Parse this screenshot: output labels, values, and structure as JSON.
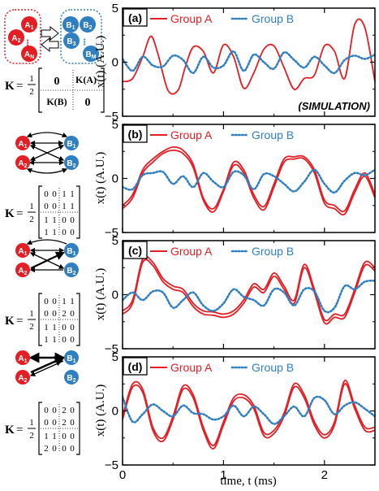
{
  "colors": {
    "group_a": "#e31e24",
    "group_b": "#2f7fc1",
    "axis": "#000000"
  },
  "axes": {
    "xlabel": "time, t (ms)",
    "ylabel": "x(t) (A.U.)",
    "x_ticks": [
      "0",
      "1",
      "2"
    ],
    "y_ticks": [
      "5",
      "0",
      "−5"
    ]
  },
  "schematic": {
    "a_nodes": [
      "A1",
      "A2",
      "AN"
    ],
    "b_nodes": [
      "B1",
      "B2",
      "BM"
    ],
    "matrix_general": {
      "lhs": "K",
      "frac_num": "1",
      "frac_den": "2",
      "rows": [
        [
          "0",
          "K(A)"
        ],
        [
          "K(B)",
          "0"
        ]
      ]
    }
  },
  "matrices": [
    {
      "panel": "b",
      "rows": [
        [
          "0",
          "0",
          "1",
          "1"
        ],
        [
          "0",
          "0",
          "1",
          "1"
        ],
        [
          "1",
          "1",
          "0",
          "0"
        ],
        [
          "1",
          "1",
          "0",
          "0"
        ]
      ]
    },
    {
      "panel": "c",
      "rows": [
        [
          "0",
          "0",
          "1",
          "1"
        ],
        [
          "0",
          "0",
          "2",
          "0"
        ],
        [
          "1",
          "1",
          "0",
          "0"
        ],
        [
          "1",
          "1",
          "0",
          "0"
        ]
      ]
    },
    {
      "panel": "d",
      "rows": [
        [
          "0",
          "0",
          "2",
          "0"
        ],
        [
          "0",
          "0",
          "2",
          "0"
        ],
        [
          "1",
          "1",
          "0",
          "0"
        ],
        [
          "2",
          "0",
          "0",
          "0"
        ]
      ]
    }
  ],
  "chart_data": [
    {
      "type": "line",
      "panel": "a",
      "title": "(a)",
      "annotation": "(SIMULATION)",
      "xlabel": "",
      "ylabel": "x(t) (A.U.)",
      "xlim": [
        0,
        2.5
      ],
      "ylim": [
        -5,
        5
      ],
      "legend": [
        "Group A",
        "Group B"
      ],
      "legend_position": "top",
      "series": [
        {
          "name": "Group A",
          "style": "solid",
          "x": [
            0,
            0.1,
            0.2,
            0.28,
            0.35,
            0.45,
            0.55,
            0.62,
            0.7,
            0.8,
            0.9,
            1.0,
            1.1,
            1.2,
            1.3,
            1.4,
            1.5,
            1.6,
            1.7,
            1.8,
            1.9,
            2.0,
            2.1,
            2.2,
            2.3,
            2.4,
            2.5
          ],
          "values": [
            -1.8,
            -1.5,
            0.5,
            2.4,
            0.8,
            -2.6,
            -2.6,
            -0.5,
            1.4,
            1.0,
            -1.0,
            1.6,
            0.5,
            -2.4,
            -1.0,
            1.2,
            1.5,
            -0.5,
            -2.5,
            -1.5,
            -1.2,
            1.5,
            1.0,
            -1.5,
            3.5,
            3.2,
            -1.8
          ]
        },
        {
          "name": "Group B",
          "style": "dotted",
          "x": [
            0,
            0.1,
            0.2,
            0.3,
            0.4,
            0.5,
            0.6,
            0.7,
            0.8,
            0.9,
            1.0,
            1.1,
            1.2,
            1.3,
            1.4,
            1.5,
            1.6,
            1.7,
            1.8,
            1.9,
            2.0,
            2.1,
            2.2,
            2.3,
            2.4,
            2.5
          ],
          "values": [
            0.3,
            -0.8,
            0.5,
            -0.3,
            -0.4,
            0.6,
            0.2,
            -1.0,
            0.5,
            -0.5,
            -0.3,
            1.0,
            -0.8,
            0.7,
            0.0,
            -0.6,
            0.9,
            0.2,
            -0.5,
            0.5,
            -0.3,
            -1.0,
            0.2,
            0.6,
            0.3,
            0.7
          ]
        }
      ]
    },
    {
      "type": "line",
      "panel": "b",
      "title": "(b)",
      "annotation": "",
      "xlabel": "",
      "ylabel": "x(t) (A.U.)",
      "xlim": [
        0,
        2.5
      ],
      "ylim": [
        -5,
        5
      ],
      "legend": [
        "Group A",
        "Group B"
      ],
      "legend_position": "top",
      "series": [
        {
          "name": "Group A (1)",
          "style": "solid",
          "x": [
            0,
            0.1,
            0.2,
            0.3,
            0.4,
            0.5,
            0.6,
            0.7,
            0.8,
            0.9,
            1.0,
            1.1,
            1.2,
            1.3,
            1.4,
            1.5,
            1.6,
            1.7,
            1.8,
            1.9,
            2.0,
            2.1,
            2.2,
            2.3,
            2.4,
            2.5
          ],
          "values": [
            -2.5,
            -1.5,
            0.8,
            1.8,
            2.5,
            2.9,
            2.6,
            1.3,
            -1.8,
            -2.8,
            -1.0,
            1.5,
            0.8,
            -1.5,
            -2.6,
            -0.5,
            1.8,
            2.0,
            2.0,
            0.8,
            -2.0,
            -2.5,
            -3.0,
            -1.0,
            0.5,
            -1.5
          ]
        },
        {
          "name": "Group A (2)",
          "style": "solid",
          "x": [
            0,
            0.1,
            0.2,
            0.3,
            0.4,
            0.5,
            0.6,
            0.7,
            0.8,
            0.9,
            1.0,
            1.1,
            1.2,
            1.3,
            1.4,
            1.5,
            1.6,
            1.7,
            1.8,
            1.9,
            2.0,
            2.1,
            2.2,
            2.3,
            2.4,
            2.5
          ],
          "values": [
            -2.8,
            -1.8,
            0.5,
            1.5,
            2.3,
            2.6,
            2.3,
            1.0,
            -2.0,
            -3.1,
            -1.2,
            1.2,
            0.5,
            -1.8,
            -2.9,
            -0.8,
            1.5,
            1.8,
            1.8,
            0.5,
            -2.3,
            -2.8,
            -3.3,
            -1.3,
            0.2,
            -1.8
          ]
        },
        {
          "name": "Group B",
          "style": "dotted",
          "x": [
            0,
            0.1,
            0.2,
            0.3,
            0.4,
            0.5,
            0.6,
            0.7,
            0.8,
            0.9,
            1.0,
            1.1,
            1.2,
            1.3,
            1.4,
            1.5,
            1.6,
            1.7,
            1.8,
            1.9,
            2.0,
            2.1,
            2.2,
            2.3,
            2.4,
            2.5
          ],
          "values": [
            -0.8,
            -1.0,
            0.3,
            0.5,
            0.6,
            -0.5,
            0.2,
            -0.8,
            0.5,
            -0.3,
            -0.8,
            0.6,
            0.3,
            -1.0,
            0.4,
            0.2,
            -0.5,
            -1.2,
            -0.3,
            0.8,
            -0.5,
            -1.3,
            -0.2,
            0.5,
            0.3,
            0.8
          ]
        }
      ]
    },
    {
      "type": "line",
      "panel": "c",
      "title": "(c)",
      "annotation": "",
      "xlabel": "",
      "ylabel": "x(t) (A.U.)",
      "xlim": [
        0,
        2.5
      ],
      "ylim": [
        -5,
        5
      ],
      "legend": [
        "Group A",
        "Group B"
      ],
      "legend_position": "top",
      "series": [
        {
          "name": "Group A (1)",
          "style": "solid",
          "x": [
            0,
            0.1,
            0.2,
            0.3,
            0.4,
            0.5,
            0.6,
            0.7,
            0.8,
            0.9,
            1.0,
            1.1,
            1.2,
            1.3,
            1.4,
            1.5,
            1.6,
            1.7,
            1.8,
            1.9,
            2.0,
            2.1,
            2.2,
            2.3,
            2.4,
            2.5
          ],
          "values": [
            -1.5,
            -0.5,
            3.3,
            3.0,
            1.5,
            0.8,
            0.5,
            -0.8,
            -1.5,
            -1.6,
            -1.8,
            -1.5,
            -0.5,
            1.0,
            0.5,
            2.0,
            0.8,
            -0.5,
            2.8,
            0.5,
            -2.3,
            -1.8,
            -1.8,
            0.5,
            3.0,
            2.5
          ]
        },
        {
          "name": "Group A (2)",
          "style": "solid",
          "x": [
            0,
            0.1,
            0.2,
            0.3,
            0.4,
            0.5,
            0.6,
            0.7,
            0.8,
            0.9,
            1.0,
            1.1,
            1.2,
            1.3,
            1.4,
            1.5,
            1.6,
            1.7,
            1.8,
            1.9,
            2.0,
            2.1,
            2.2,
            2.3,
            2.4,
            2.5
          ],
          "values": [
            -1.8,
            -0.8,
            3.0,
            2.7,
            1.2,
            0.5,
            0.2,
            -1.1,
            -1.8,
            -1.9,
            -2.1,
            -1.8,
            -0.8,
            0.7,
            0.2,
            1.7,
            0.5,
            -0.8,
            2.5,
            0.2,
            -2.6,
            -2.1,
            -2.1,
            0.2,
            2.7,
            2.2
          ]
        },
        {
          "name": "Group B",
          "style": "dotted",
          "x": [
            0,
            0.1,
            0.2,
            0.3,
            0.4,
            0.5,
            0.6,
            0.7,
            0.8,
            0.9,
            1.0,
            1.1,
            1.2,
            1.3,
            1.4,
            1.5,
            1.6,
            1.7,
            1.8,
            1.9,
            2.0,
            2.1,
            2.2,
            2.3,
            2.4,
            2.5
          ],
          "values": [
            -0.5,
            0.2,
            -0.5,
            0.3,
            0.2,
            -1.2,
            -0.5,
            0.2,
            -1.0,
            -1.5,
            -0.8,
            0.5,
            -0.2,
            -0.5,
            -1.0,
            0.5,
            0.2,
            -1.0,
            0.5,
            0.3,
            -1.5,
            -1.2,
            0.8,
            0.5,
            1.2,
            1.3
          ]
        }
      ]
    },
    {
      "type": "line",
      "panel": "d",
      "title": "(d)",
      "annotation": "",
      "xlabel": "time, t (ms)",
      "ylabel": "x(t) (A.U.)",
      "xlim": [
        0,
        2.5
      ],
      "ylim": [
        -5,
        5
      ],
      "legend": [
        "Group A",
        "Group B"
      ],
      "legend_position": "top",
      "series": [
        {
          "name": "Group A (1)",
          "style": "solid",
          "x": [
            0,
            0.1,
            0.2,
            0.3,
            0.4,
            0.5,
            0.6,
            0.7,
            0.8,
            0.9,
            1.0,
            1.1,
            1.2,
            1.3,
            1.4,
            1.5,
            1.6,
            1.7,
            1.8,
            1.9,
            2.0,
            2.1,
            2.2,
            2.3,
            2.4,
            2.5
          ],
          "values": [
            -0.5,
            2.5,
            2.0,
            -1.5,
            -2.5,
            -0.5,
            2.3,
            1.5,
            -1.5,
            -3.2,
            -1.0,
            1.2,
            1.5,
            0.5,
            -2.0,
            -1.8,
            -0.2,
            2.5,
            1.5,
            -1.0,
            -2.2,
            -1.0,
            2.8,
            0.5,
            -1.5,
            -1.5
          ]
        },
        {
          "name": "Group A (2)",
          "style": "solid",
          "x": [
            0,
            0.1,
            0.2,
            0.3,
            0.4,
            0.5,
            0.6,
            0.7,
            0.8,
            0.9,
            1.0,
            1.1,
            1.2,
            1.3,
            1.4,
            1.5,
            1.6,
            1.7,
            1.8,
            1.9,
            2.0,
            2.1,
            2.2,
            2.3,
            2.4,
            2.5
          ],
          "values": [
            -0.8,
            2.2,
            1.7,
            -1.8,
            -2.8,
            -0.8,
            2.0,
            1.2,
            -1.8,
            -3.5,
            -1.3,
            0.9,
            1.2,
            0.2,
            -2.3,
            -2.1,
            -0.5,
            2.2,
            1.2,
            -1.3,
            -2.5,
            -1.3,
            2.5,
            0.2,
            -1.8,
            -1.8
          ]
        },
        {
          "name": "Group B",
          "style": "dotted",
          "x": [
            0,
            0.1,
            0.2,
            0.3,
            0.4,
            0.5,
            0.6,
            0.7,
            0.8,
            0.9,
            1.0,
            1.1,
            1.2,
            1.3,
            1.4,
            1.5,
            1.6,
            1.7,
            1.8,
            1.9,
            2.0,
            2.1,
            2.2,
            2.3,
            2.4,
            2.5
          ],
          "values": [
            1.3,
            -1.0,
            -0.3,
            0.6,
            0.0,
            -0.5,
            0.5,
            -0.2,
            -0.3,
            -0.8,
            -0.5,
            0.5,
            -0.5,
            0.4,
            -0.3,
            -1.2,
            -0.5,
            0.4,
            -0.5,
            1.2,
            1.0,
            -0.3,
            0.5,
            0.8,
            0.2,
            -0.5
          ]
        }
      ]
    }
  ]
}
